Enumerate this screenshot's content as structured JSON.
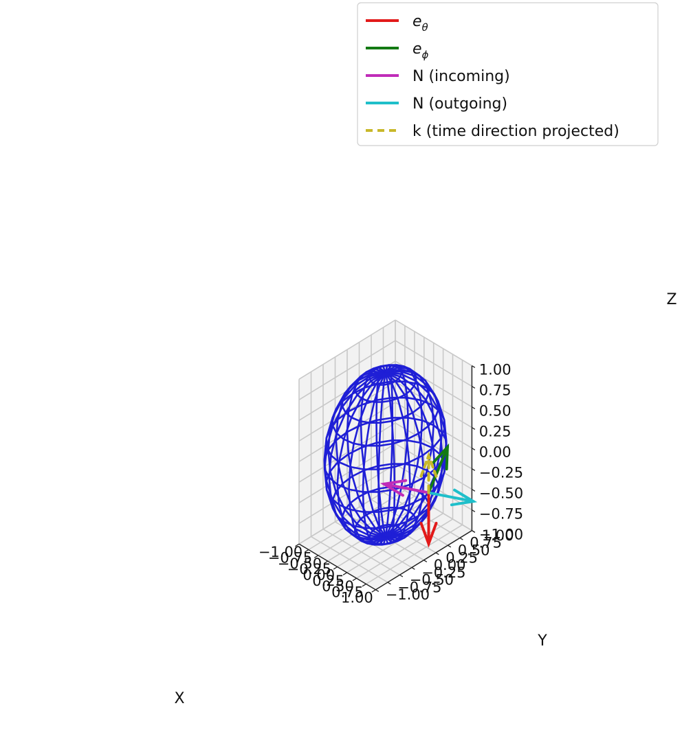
{
  "chart_data": {
    "type": "3d-wireframe",
    "surface": {
      "shape": "unit sphere",
      "center": [
        0,
        0,
        0
      ],
      "radius": 1.0,
      "color": "#1f1fd6"
    },
    "vectors": [
      {
        "name": "e_θ",
        "color": "#e21a1a",
        "style": "solid",
        "origin": [
          0.5,
          0.5,
          -0.5
        ],
        "vector": [
          0.0,
          0.0,
          -0.62
        ]
      },
      {
        "name": "e_ϕ",
        "color": "#137a13",
        "style": "solid",
        "origin": [
          0.5,
          0.5,
          -0.5
        ],
        "vector": [
          -0.2,
          0.55,
          0.3
        ]
      },
      {
        "name": "N (incoming)",
        "color": "#c02cb8",
        "style": "solid",
        "origin": [
          0.5,
          0.5,
          -0.5
        ],
        "vector": [
          -0.6,
          -0.45,
          0.1
        ]
      },
      {
        "name": "N (outgoing)",
        "color": "#1fbfca",
        "style": "solid",
        "origin": [
          0.5,
          0.5,
          -0.5
        ],
        "vector": [
          0.6,
          0.45,
          -0.1
        ]
      },
      {
        "name": "k (time direction projected)",
        "color": "#c8b82a",
        "style": "dashed",
        "origin": [
          0.5,
          0.5,
          -0.5
        ],
        "vector": [
          0.0,
          0.0,
          0.45
        ]
      }
    ],
    "legend": {
      "position": "top-right",
      "entries": [
        {
          "label_main": "e",
          "label_sub": "θ",
          "color": "#e21a1a",
          "dashed": false
        },
        {
          "label_main": "e",
          "label_sub": "ϕ",
          "color": "#137a13",
          "dashed": false
        },
        {
          "label_main": "N (incoming)",
          "label_sub": "",
          "color": "#c02cb8",
          "dashed": false
        },
        {
          "label_main": "N (outgoing)",
          "label_sub": "",
          "color": "#1fbfca",
          "dashed": false
        },
        {
          "label_main": "k (time direction projected)",
          "label_sub": "",
          "color": "#c8b82a",
          "dashed": true
        }
      ]
    },
    "axes": {
      "x": {
        "label": "X",
        "lim": [
          -1.0,
          1.0
        ]
      },
      "y": {
        "label": "Y",
        "lim": [
          -1.0,
          1.0
        ]
      },
      "z": {
        "label": "Z",
        "lim": [
          -1.0,
          1.0
        ]
      },
      "ticks": [
        -1.0,
        -0.75,
        -0.5,
        -0.25,
        0.0,
        0.25,
        0.5,
        0.75,
        1.0
      ],
      "tick_labels": [
        "−1.00",
        "−0.75",
        "−0.50",
        "−0.25",
        "0.00",
        "0.25",
        "0.50",
        "0.75",
        "1.00"
      ],
      "grid": true,
      "pane_color": "#f2f2f2",
      "grid_color": "#c8c8c8"
    }
  }
}
